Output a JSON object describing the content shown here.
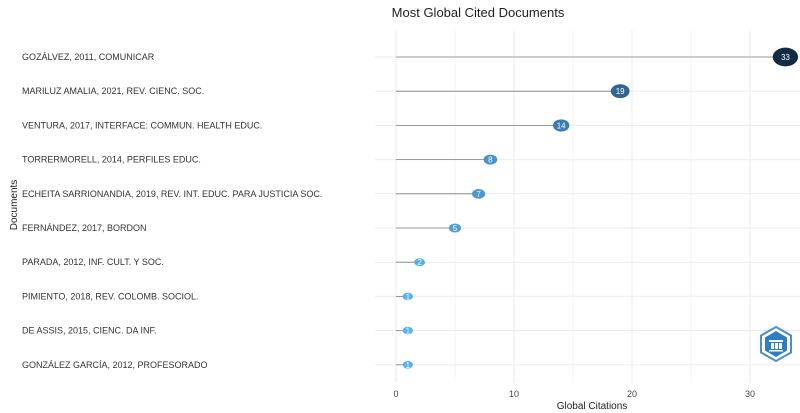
{
  "chart_data": {
    "type": "lollipop",
    "title": "Most Global Cited Documents",
    "xlabel": "Global Citations",
    "ylabel": "Documents",
    "xlim": [
      0,
      33
    ],
    "xticks": [
      0,
      10,
      20,
      30
    ],
    "grid": true,
    "categories": [
      "GOZÁLVEZ, 2011, COMUNICAR",
      "MARILUZ AMALIA, 2021, REV. CIENC. SOC.",
      "VENTURA, 2017, INTERFACE: COMMUN. HEALTH EDUC.",
      "TORRERMORELL, 2014, PERFILES EDUC.",
      "ECHEITA SARRIONANDIA, 2019, REV. INT. EDUC. PARA JUSTICIA SOC.",
      "FERNÁNDEZ, 2017, BORDON",
      "PARADA, 2012, INF. CULT. Y SOC.",
      "PIMIENTO, 2018, REV. COLOMB. SOCIOL.",
      "DE ASSIS, 2015, CIENC. DA INF.",
      "GONZÁLEZ GARCÍA, 2012, PROFESORADO"
    ],
    "values": [
      33,
      19,
      14,
      8,
      7,
      5,
      2,
      1,
      1,
      1
    ],
    "colors": {
      "high": "#132B43",
      "low": "#56B1F7",
      "stem": "#7f7f7f",
      "grid": "#ebebeb"
    }
  },
  "logo": {
    "name": "bibliometrix-logo"
  }
}
